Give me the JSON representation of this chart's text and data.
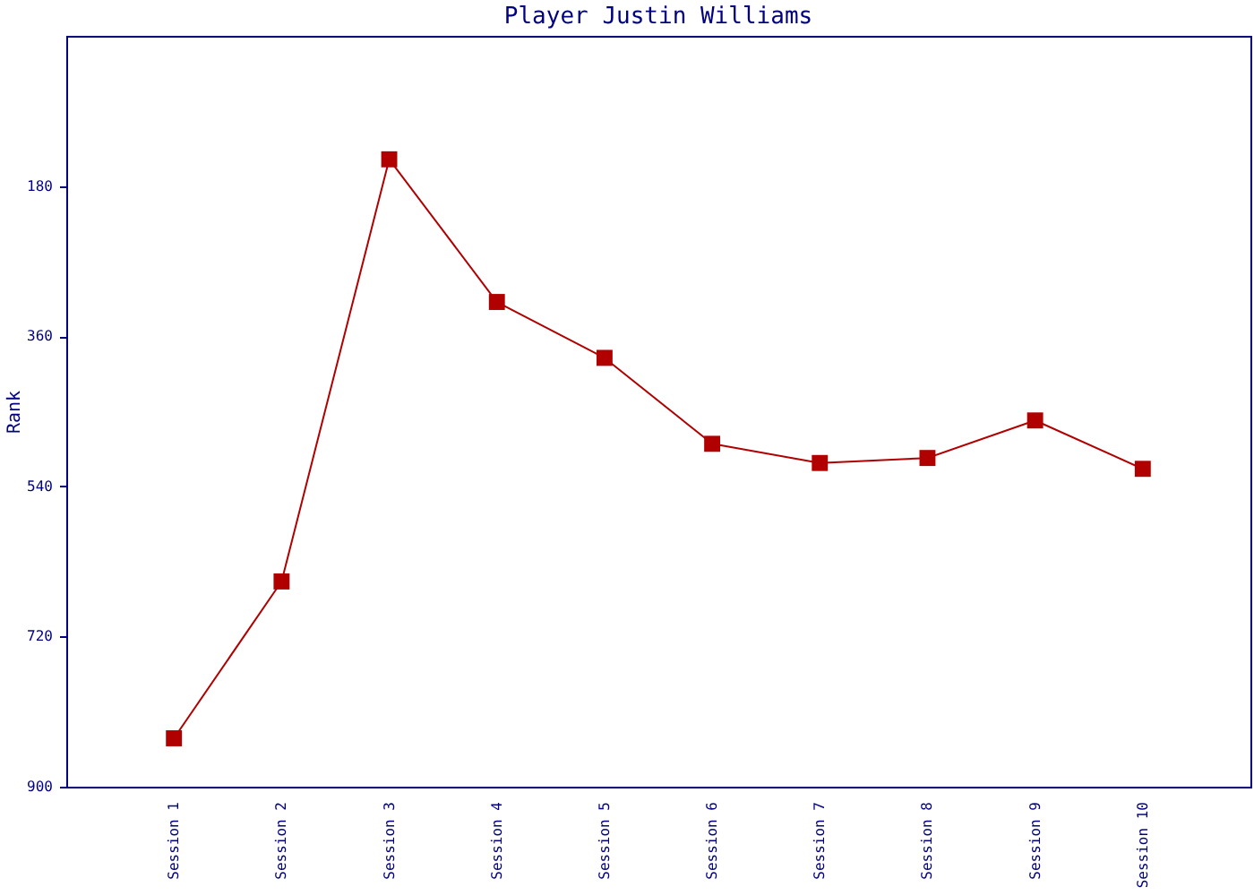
{
  "chart_data": {
    "type": "line",
    "title": "Player Justin Williams",
    "ylabel": "Rank",
    "categories": [
      "Session 1",
      "Session 2",
      "Session 3",
      "Session 4",
      "Session 5",
      "Session 6",
      "Session 7",
      "Session 8",
      "Session 9",
      "Session 10"
    ],
    "series": [
      {
        "color": "#b00000",
        "values": [
          842,
          654,
          148,
          319,
          386,
          489,
          512,
          506,
          461,
          519
        ]
      }
    ],
    "ylim": [
      900,
      0
    ],
    "yticks": [
      180,
      360,
      540,
      720,
      900
    ],
    "grid": false,
    "legend": false,
    "marker": "square",
    "line_style": "solid"
  }
}
